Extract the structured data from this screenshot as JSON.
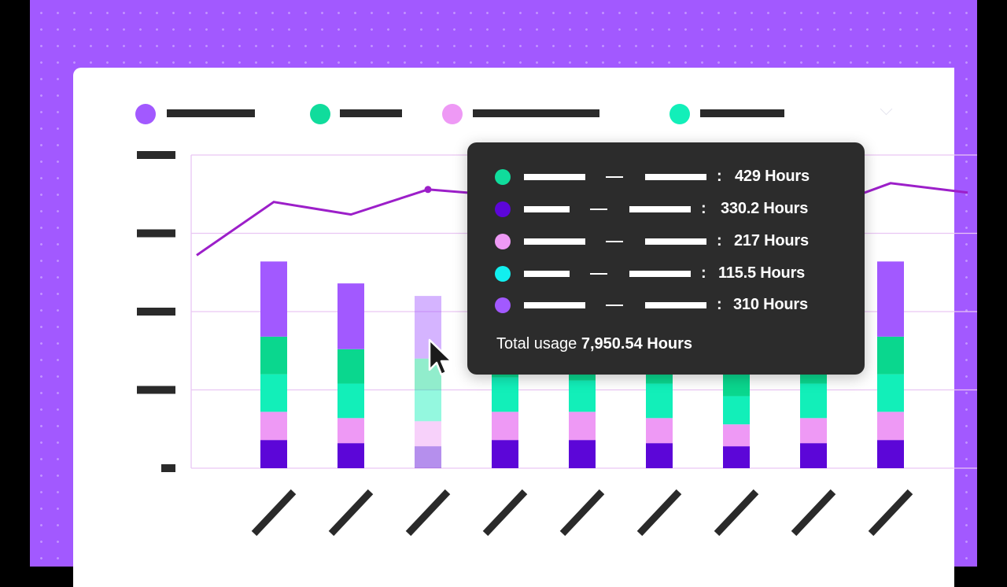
{
  "colors": {
    "background": "#a259ff",
    "line": "#9c1fc9",
    "gridline": "#e9c6f3",
    "tick_placeholder": "#2a2a2a",
    "tooltip_bg": "#2c2c2c"
  },
  "legend": [
    {
      "color": "#a259ff",
      "icon": "legend-dot-purple"
    },
    {
      "color": "#10dc9c",
      "icon": "legend-dot-green"
    },
    {
      "color": "#ee99f5",
      "icon": "legend-dot-pink"
    },
    {
      "color": "#12efb9",
      "icon": "legend-dot-teal"
    }
  ],
  "chart_data": {
    "type": "bar",
    "stacked": true,
    "categories": [
      "",
      "",
      "",
      "",
      "",
      "",
      "",
      "",
      ""
    ],
    "grid": true,
    "ylim": [
      0,
      100
    ],
    "series": [
      {
        "color": "#5c06d8",
        "values": [
          9,
          8,
          7,
          9,
          9,
          8,
          7,
          8,
          9
        ]
      },
      {
        "color": "#ee99f5",
        "values": [
          9,
          8,
          8,
          9,
          9,
          8,
          7,
          8,
          9
        ]
      },
      {
        "color": "#12efb9",
        "values": [
          12,
          11,
          10,
          11,
          10,
          11,
          9,
          11,
          12
        ]
      },
      {
        "color": "#0ad78e",
        "values": [
          12,
          11,
          10,
          11,
          11,
          11,
          10,
          11,
          12
        ]
      },
      {
        "color": "#a259ff",
        "values": [
          24,
          21,
          20,
          23,
          22,
          24,
          23,
          20,
          24
        ]
      }
    ],
    "line": {
      "color": "#9c1fc9",
      "values": [
        68,
        85,
        81,
        89,
        87,
        88,
        86,
        84,
        82,
        91,
        88
      ],
      "x_positions": [
        -1,
        0,
        1,
        2,
        3,
        4,
        5,
        6,
        7,
        8,
        9
      ]
    }
  },
  "tooltip": {
    "rows": [
      {
        "color": "#10dc9c",
        "value": "429 Hours"
      },
      {
        "color": "#5c06d8",
        "value": "330.2 Hours"
      },
      {
        "color": "#ee99f5",
        "value": "217 Hours"
      },
      {
        "color": "#12efef",
        "value": "115.5 Hours"
      },
      {
        "color": "#a259ff",
        "value": "310 Hours"
      }
    ],
    "colon": ":",
    "total_label": "Total usage",
    "total_value": "7,950.54 Hours"
  }
}
